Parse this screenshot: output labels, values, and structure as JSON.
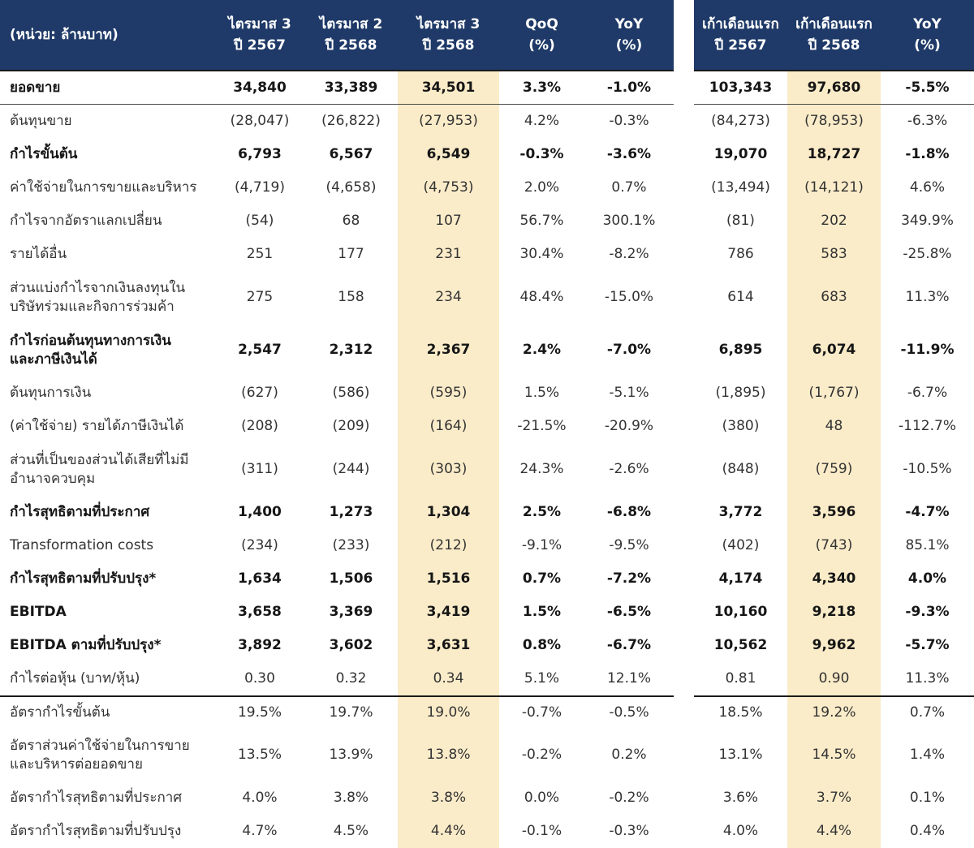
{
  "colors": {
    "page_bg": "#FFFFFF",
    "header_bg": "#1F3A68",
    "header_text": "#FFFFFF",
    "highlight_bg": "#FBECC9",
    "text": "#333333",
    "bold_text": "#161616",
    "border_dark": "#1A1A1A",
    "row_line": "#4A4A4A"
  },
  "chart_data": {
    "type": "table",
    "unit_label": "(หน่วย: ล้านบาท)",
    "column_headers": [
      [
        "ไตรมาส 3",
        "ปี 2567"
      ],
      [
        "ไตรมาส 2",
        "ปี 2568"
      ],
      [
        "ไตรมาส 3",
        "ปี 2568"
      ],
      [
        "QoQ",
        "(%)"
      ],
      [
        "YoY",
        "(%)"
      ],
      [
        "เก้าเดือนแรก",
        "ปี 2567"
      ],
      [
        "เก้าเดือนแรก",
        "ปี 2568"
      ],
      [
        "YoY",
        "(%)"
      ]
    ],
    "gap_before_column": 5,
    "highlight_value_indices": [
      2,
      6
    ],
    "rows": [
      {
        "label": "ยอดขาย",
        "bold": true,
        "border_bottom": true,
        "values": [
          "34,840",
          "33,389",
          "34,501",
          "3.3%",
          "-1.0%",
          "103,343",
          "97,680",
          "-5.5%"
        ]
      },
      {
        "label": "ต้นทุนขาย",
        "values": [
          "(28,047)",
          "(26,822)",
          "(27,953)",
          "4.2%",
          "-0.3%",
          "(84,273)",
          "(78,953)",
          "-6.3%"
        ]
      },
      {
        "label": "กำไรขั้นต้น",
        "bold": true,
        "values": [
          "6,793",
          "6,567",
          "6,549",
          "-0.3%",
          "-3.6%",
          "19,070",
          "18,727",
          "-1.8%"
        ]
      },
      {
        "label": "ค่าใช้จ่ายในการขายและบริหาร",
        "values": [
          "(4,719)",
          "(4,658)",
          "(4,753)",
          "2.0%",
          "0.7%",
          "(13,494)",
          "(14,121)",
          "4.6%"
        ]
      },
      {
        "label": "กำไรจากอัตราแลกเปลี่ยน",
        "values": [
          "(54)",
          "68",
          "107",
          "56.7%",
          "300.1%",
          "(81)",
          "202",
          "349.9%"
        ]
      },
      {
        "label": "รายได้อื่น",
        "values": [
          "251",
          "177",
          "231",
          "30.4%",
          "-8.2%",
          "786",
          "583",
          "-25.8%"
        ]
      },
      {
        "label": "ส่วนแบ่งกำไรจากเงินลงทุนใน\nบริษัทร่วมและกิจการร่วมค้า",
        "tall": true,
        "values": [
          "275",
          "158",
          "234",
          "48.4%",
          "-15.0%",
          "614",
          "683",
          "11.3%"
        ]
      },
      {
        "label": "กำไรก่อนต้นทุนทางการเงิน\nและภาษีเงินได้",
        "bold": true,
        "tall": true,
        "values": [
          "2,547",
          "2,312",
          "2,367",
          "2.4%",
          "-7.0%",
          "6,895",
          "6,074",
          "-11.9%"
        ]
      },
      {
        "label": "ต้นทุนการเงิน",
        "values": [
          "(627)",
          "(586)",
          "(595)",
          "1.5%",
          "-5.1%",
          "(1,895)",
          "(1,767)",
          "-6.7%"
        ]
      },
      {
        "label": "(ค่าใช้จ่าย) รายได้ภาษีเงินได้",
        "values": [
          "(208)",
          "(209)",
          "(164)",
          "-21.5%",
          "-20.9%",
          "(380)",
          "48",
          "-112.7%"
        ]
      },
      {
        "label": "ส่วนที่เป็นของส่วนได้เสียที่ไม่มี\nอำนาจควบคุม",
        "tall": true,
        "values": [
          "(311)",
          "(244)",
          "(303)",
          "24.3%",
          "-2.6%",
          "(848)",
          "(759)",
          "-10.5%"
        ]
      },
      {
        "label": "กำไรสุทธิตามที่ประกาศ",
        "bold": true,
        "values": [
          "1,400",
          "1,273",
          "1,304",
          "2.5%",
          "-6.8%",
          "3,772",
          "3,596",
          "-4.7%"
        ]
      },
      {
        "label": "Transformation costs",
        "values": [
          "(234)",
          "(233)",
          "(212)",
          "-9.1%",
          "-9.5%",
          "(402)",
          "(743)",
          "85.1%"
        ]
      },
      {
        "label": "กำไรสุทธิตามที่ปรับปรุง*",
        "bold": true,
        "values": [
          "1,634",
          "1,506",
          "1,516",
          "0.7%",
          "-7.2%",
          "4,174",
          "4,340",
          "4.0%"
        ]
      },
      {
        "label": "EBITDA",
        "bold": true,
        "values": [
          "3,658",
          "3,369",
          "3,419",
          "1.5%",
          "-6.5%",
          "10,160",
          "9,218",
          "-9.3%"
        ]
      },
      {
        "label": "EBITDA ตามที่ปรับปรุง*",
        "bold": true,
        "values": [
          "3,892",
          "3,602",
          "3,631",
          "0.8%",
          "-6.7%",
          "10,562",
          "9,962",
          "-5.7%"
        ]
      },
      {
        "label": "กำไรต่อหุ้น (บาท/หุ้น)",
        "values": [
          "0.30",
          "0.32",
          "0.34",
          "5.1%",
          "12.1%",
          "0.81",
          "0.90",
          "11.3%"
        ]
      },
      {
        "label": "อัตรากำไรขั้นต้น",
        "border_top": true,
        "values": [
          "19.5%",
          "19.7%",
          "19.0%",
          "-0.7%",
          "-0.5%",
          "18.5%",
          "19.2%",
          "0.7%"
        ]
      },
      {
        "label": "อัตราส่วนค่าใช้จ่ายในการขาย\nและบริหารต่อยอดขาย",
        "tall": true,
        "values": [
          "13.5%",
          "13.9%",
          "13.8%",
          "-0.2%",
          "0.2%",
          "13.1%",
          "14.5%",
          "1.4%"
        ]
      },
      {
        "label": "อัตรากำไรสุทธิตามที่ประกาศ",
        "values": [
          "4.0%",
          "3.8%",
          "3.8%",
          "0.0%",
          "-0.2%",
          "3.6%",
          "3.7%",
          "0.1%"
        ]
      },
      {
        "label": "อัตรากำไรสุทธิตามที่ปรับปรุง",
        "values": [
          "4.7%",
          "4.5%",
          "4.4%",
          "-0.1%",
          "-0.3%",
          "4.0%",
          "4.4%",
          "0.4%"
        ]
      }
    ]
  }
}
